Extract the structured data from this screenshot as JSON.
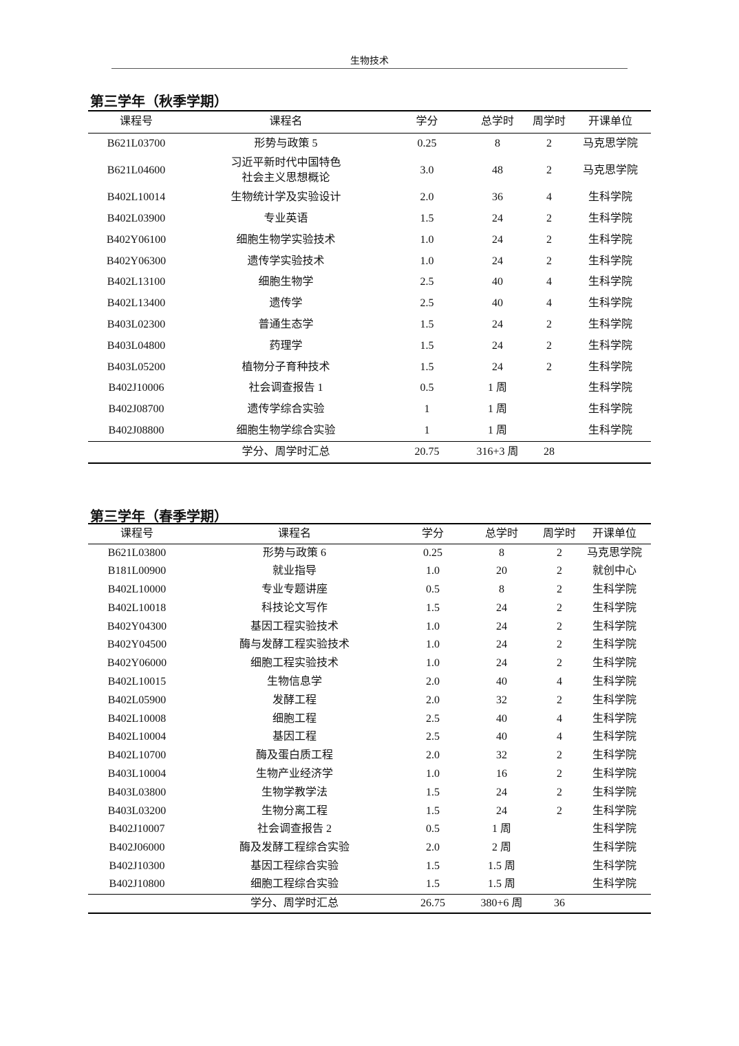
{
  "header": {
    "title": "生物技术"
  },
  "columns": [
    "课程号",
    "课程名",
    "学分",
    "总学时",
    "周学时",
    "开课单位"
  ],
  "sections": [
    {
      "title": "第三学年（秋季学期）",
      "rows": [
        [
          "B621L03700",
          "形势与政策 5",
          "0.25",
          "8",
          "2",
          "马克思学院"
        ],
        [
          "B621L04600",
          "习近平新时代中国特色\n社会主义思想概论",
          "3.0",
          "48",
          "2",
          "马克思学院"
        ],
        [
          "B402L10014",
          "生物统计学及实验设计",
          "2.0",
          "36",
          "4",
          "生科学院"
        ],
        [
          "B402L03900",
          "专业英语",
          "1.5",
          "24",
          "2",
          "生科学院"
        ],
        [
          "B402Y06100",
          "细胞生物学实验技术",
          "1.0",
          "24",
          "2",
          "生科学院"
        ],
        [
          "B402Y06300",
          "遗传学实验技术",
          "1.0",
          "24",
          "2",
          "生科学院"
        ],
        [
          "B402L13100",
          "细胞生物学",
          "2.5",
          "40",
          "4",
          "生科学院"
        ],
        [
          "B402L13400",
          "遗传学",
          "2.5",
          "40",
          "4",
          "生科学院"
        ],
        [
          "B403L02300",
          "普通生态学",
          "1.5",
          "24",
          "2",
          "生科学院"
        ],
        [
          "B403L04800",
          "药理学",
          "1.5",
          "24",
          "2",
          "生科学院"
        ],
        [
          "B403L05200",
          "植物分子育种技术",
          "1.5",
          "24",
          "2",
          "生科学院"
        ],
        [
          "B402J10006",
          "社会调查报告 1",
          "0.5",
          "1 周",
          "",
          "生科学院"
        ],
        [
          "B402J08700",
          "遗传学综合实验",
          "1",
          "1 周",
          "",
          "生科学院"
        ],
        [
          "B402J08800",
          "细胞生物学综合实验",
          "1",
          "1 周",
          "",
          "生科学院"
        ]
      ],
      "total": [
        "",
        "学分、周学时汇总",
        "20.75",
        "316+3 周",
        "28",
        ""
      ]
    },
    {
      "title": "第三学年（春季学期）",
      "rows": [
        [
          "B621L03800",
          "形势与政策 6",
          "0.25",
          "8",
          "2",
          "马克思学院"
        ],
        [
          "B181L00900",
          "就业指导",
          "1.0",
          "20",
          "2",
          "就创中心"
        ],
        [
          "B402L10000",
          "专业专题讲座",
          "0.5",
          "8",
          "2",
          "生科学院"
        ],
        [
          "B402L10018",
          "科技论文写作",
          "1.5",
          "24",
          "2",
          "生科学院"
        ],
        [
          "B402Y04300",
          "基因工程实验技术",
          "1.0",
          "24",
          "2",
          "生科学院"
        ],
        [
          "B402Y04500",
          "酶与发酵工程实验技术",
          "1.0",
          "24",
          "2",
          "生科学院"
        ],
        [
          "B402Y06000",
          "细胞工程实验技术",
          "1.0",
          "24",
          "2",
          "生科学院"
        ],
        [
          "B402L10015",
          "生物信息学",
          "2.0",
          "40",
          "4",
          "生科学院"
        ],
        [
          "B402L05900",
          "发酵工程",
          "2.0",
          "32",
          "2",
          "生科学院"
        ],
        [
          "B402L10008",
          "细胞工程",
          "2.5",
          "40",
          "4",
          "生科学院"
        ],
        [
          "B402L10004",
          "基因工程",
          "2.5",
          "40",
          "4",
          "生科学院"
        ],
        [
          "B402L10700",
          "酶及蛋白质工程",
          "2.0",
          "32",
          "2",
          "生科学院"
        ],
        [
          "B403L10004",
          "生物产业经济学",
          "1.0",
          "16",
          "2",
          "生科学院"
        ],
        [
          "B403L03800",
          "生物学教学法",
          "1.5",
          "24",
          "2",
          "生科学院"
        ],
        [
          "B403L03200",
          "生物分离工程",
          "1.5",
          "24",
          "2",
          "生科学院"
        ],
        [
          "B402J10007",
          "社会调查报告 2",
          "0.5",
          "1 周",
          "",
          "生科学院"
        ],
        [
          "B402J06000",
          "酶及发酵工程综合实验",
          "2.0",
          "2 周",
          "",
          "生科学院"
        ],
        [
          "B402J10300",
          "基因工程综合实验",
          "1.5",
          "1.5 周",
          "",
          "生科学院"
        ],
        [
          "B402J10800",
          "细胞工程综合实验",
          "1.5",
          "1.5 周",
          "",
          "生科学院"
        ]
      ],
      "total": [
        "",
        "学分、周学时汇总",
        "26.75",
        "380+6 周",
        "36",
        ""
      ]
    }
  ]
}
